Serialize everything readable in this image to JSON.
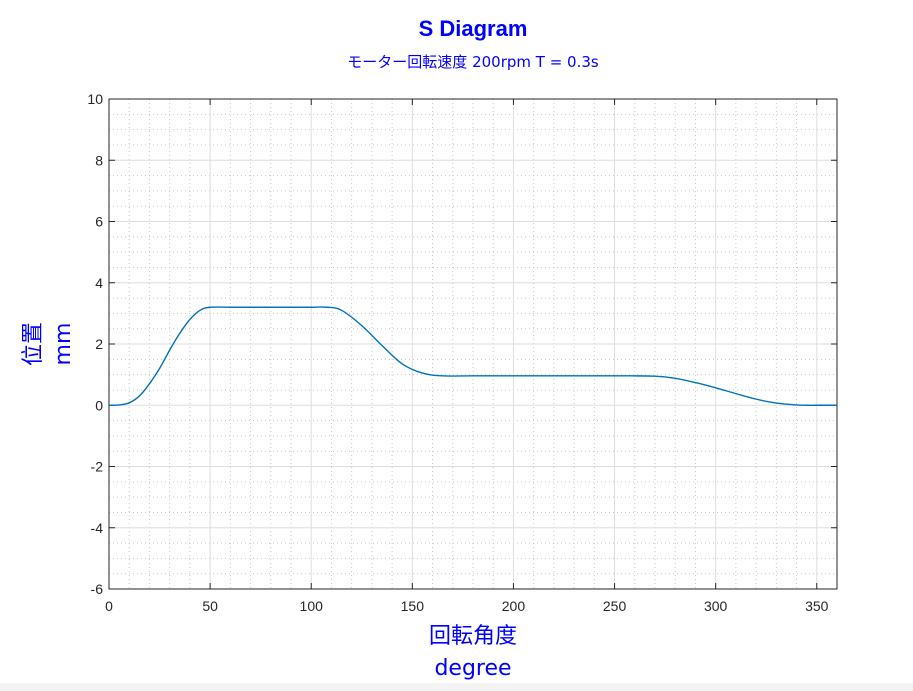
{
  "chart_data": {
    "type": "line",
    "title": "S Diagram",
    "subtitle": "モーター回転速度 200rpm   T = 0.3s",
    "xlabel": [
      "回転角度",
      "degree"
    ],
    "ylabel": [
      "位置",
      "mm"
    ],
    "xlim": [
      0,
      360
    ],
    "ylim": [
      -6,
      10
    ],
    "xticks": [
      0,
      50,
      100,
      150,
      200,
      250,
      300,
      350
    ],
    "yticks": [
      -6,
      -4,
      -2,
      0,
      2,
      4,
      6,
      8,
      10
    ],
    "grid": true,
    "minor_grid": true,
    "series": [
      {
        "color": "#0072BD",
        "x": [
          0,
          5,
          10,
          15,
          20,
          25,
          30,
          35,
          40,
          45,
          50,
          60,
          80,
          100,
          108,
          115,
          125,
          135,
          145,
          155,
          165,
          180,
          200,
          250,
          270,
          280,
          290,
          300,
          310,
          320,
          330,
          340,
          345,
          350,
          360
        ],
        "y": [
          0,
          0.01,
          0.08,
          0.3,
          0.7,
          1.2,
          1.8,
          2.35,
          2.8,
          3.1,
          3.2,
          3.2,
          3.2,
          3.2,
          3.2,
          3.1,
          2.6,
          1.95,
          1.35,
          1.05,
          0.96,
          0.96,
          0.96,
          0.96,
          0.95,
          0.88,
          0.74,
          0.57,
          0.38,
          0.2,
          0.07,
          0.01,
          0,
          0,
          0
        ]
      }
    ]
  },
  "colors": {
    "label_blue": "#0000FF",
    "title_blue": "#0000FF",
    "line": "#0072BD",
    "axis": "#262626",
    "grid": "#d9d9d9"
  }
}
